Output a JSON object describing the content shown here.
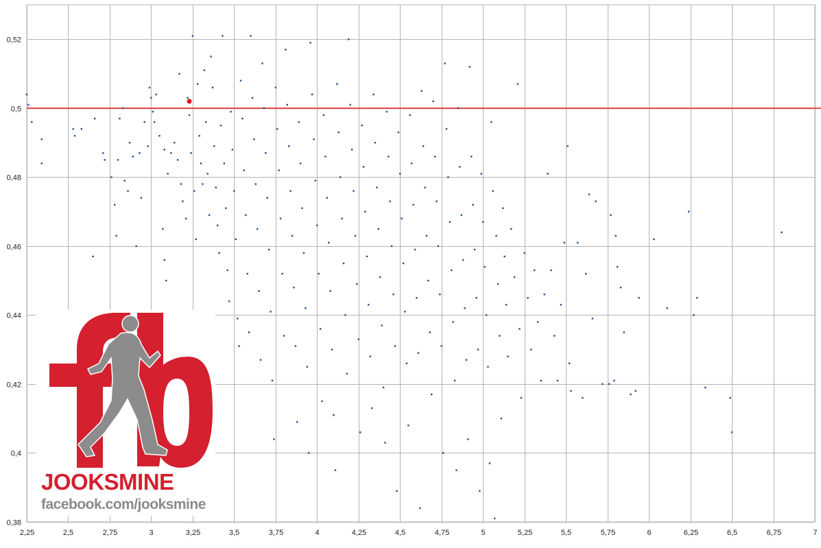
{
  "chart_data": {
    "type": "scatter",
    "title": "",
    "xlabel": "",
    "ylabel": "",
    "xlim": [
      2.25,
      7
    ],
    "ylim": [
      0.38,
      0.53
    ],
    "x_ticks": [
      "2,25",
      "2,5",
      "2,75",
      "3",
      "3,25",
      "3,5",
      "3,75",
      "4",
      "4,25",
      "4,5",
      "4,75",
      "5",
      "5,25",
      "5,5",
      "5,75",
      "6",
      "6,25",
      "6,5",
      "6,75",
      "7"
    ],
    "y_ticks": [
      "0,38",
      "0,4",
      "0,42",
      "0,44",
      "0,46",
      "0,48",
      "0,5",
      "0,52"
    ],
    "grid": true,
    "series": [
      {
        "color": "#1f4e8c",
        "points": [
          [
            2.25,
            0.504
          ],
          [
            2.26,
            0.501
          ],
          [
            2.28,
            0.496
          ],
          [
            2.34,
            0.491
          ],
          [
            2.34,
            0.484
          ],
          [
            2.53,
            0.494
          ],
          [
            2.54,
            0.492
          ],
          [
            2.58,
            0.494
          ],
          [
            2.65,
            0.457
          ],
          [
            2.66,
            0.497
          ],
          [
            2.71,
            0.487
          ],
          [
            2.72,
            0.485
          ],
          [
            2.76,
            0.48
          ],
          [
            2.78,
            0.472
          ],
          [
            2.79,
            0.463
          ],
          [
            2.8,
            0.485
          ],
          [
            2.81,
            0.497
          ],
          [
            2.83,
            0.5
          ],
          [
            2.84,
            0.479
          ],
          [
            2.86,
            0.476
          ],
          [
            2.87,
            0.49
          ],
          [
            2.89,
            0.486
          ],
          [
            2.91,
            0.46
          ],
          [
            2.93,
            0.487
          ],
          [
            2.94,
            0.474
          ],
          [
            2.96,
            0.496
          ],
          [
            2.98,
            0.489
          ],
          [
            2.99,
            0.506
          ],
          [
            3.0,
            0.503
          ],
          [
            3.01,
            0.499
          ],
          [
            3.02,
            0.496
          ],
          [
            3.03,
            0.504
          ],
          [
            3.05,
            0.492
          ],
          [
            3.07,
            0.465
          ],
          [
            3.08,
            0.488
          ],
          [
            3.08,
            0.456
          ],
          [
            3.09,
            0.45
          ],
          [
            3.1,
            0.481
          ],
          [
            3.12,
            0.487
          ],
          [
            3.14,
            0.49
          ],
          [
            3.16,
            0.485
          ],
          [
            3.17,
            0.51
          ],
          [
            3.18,
            0.478
          ],
          [
            3.19,
            0.473
          ],
          [
            3.21,
            0.468
          ],
          [
            3.22,
            0.503
          ],
          [
            3.23,
            0.498
          ],
          [
            3.24,
            0.487
          ],
          [
            3.25,
            0.521
          ],
          [
            3.26,
            0.476
          ],
          [
            3.27,
            0.462
          ],
          [
            3.28,
            0.507
          ],
          [
            3.29,
            0.492
          ],
          [
            3.3,
            0.484
          ],
          [
            3.31,
            0.478
          ],
          [
            3.32,
            0.511
          ],
          [
            3.33,
            0.496
          ],
          [
            3.34,
            0.481
          ],
          [
            3.35,
            0.469
          ],
          [
            3.36,
            0.515
          ],
          [
            3.37,
            0.506
          ],
          [
            3.38,
            0.489
          ],
          [
            3.39,
            0.477
          ],
          [
            3.4,
            0.466
          ],
          [
            3.41,
            0.458
          ],
          [
            3.42,
            0.495
          ],
          [
            3.43,
            0.521
          ],
          [
            3.44,
            0.484
          ],
          [
            3.45,
            0.471
          ],
          [
            3.46,
            0.453
          ],
          [
            3.47,
            0.444
          ],
          [
            3.48,
            0.499
          ],
          [
            3.49,
            0.488
          ],
          [
            3.5,
            0.476
          ],
          [
            3.51,
            0.462
          ],
          [
            3.52,
            0.439
          ],
          [
            3.53,
            0.431
          ],
          [
            3.54,
            0.508
          ],
          [
            3.55,
            0.497
          ],
          [
            3.56,
            0.482
          ],
          [
            3.57,
            0.469
          ],
          [
            3.58,
            0.452
          ],
          [
            3.59,
            0.435
          ],
          [
            3.6,
            0.521
          ],
          [
            3.61,
            0.503
          ],
          [
            3.62,
            0.491
          ],
          [
            3.63,
            0.478
          ],
          [
            3.64,
            0.465
          ],
          [
            3.65,
            0.447
          ],
          [
            3.66,
            0.427
          ],
          [
            3.67,
            0.513
          ],
          [
            3.68,
            0.5
          ],
          [
            3.69,
            0.487
          ],
          [
            3.7,
            0.474
          ],
          [
            3.71,
            0.459
          ],
          [
            3.72,
            0.441
          ],
          [
            3.73,
            0.421
          ],
          [
            3.74,
            0.404
          ],
          [
            3.75,
            0.506
          ],
          [
            3.76,
            0.494
          ],
          [
            3.77,
            0.482
          ],
          [
            3.78,
            0.468
          ],
          [
            3.79,
            0.452
          ],
          [
            3.8,
            0.434
          ],
          [
            3.81,
            0.517
          ],
          [
            3.82,
            0.501
          ],
          [
            3.83,
            0.489
          ],
          [
            3.84,
            0.476
          ],
          [
            3.85,
            0.463
          ],
          [
            3.86,
            0.448
          ],
          [
            3.87,
            0.431
          ],
          [
            3.88,
            0.409
          ],
          [
            3.89,
            0.496
          ],
          [
            3.9,
            0.484
          ],
          [
            3.91,
            0.471
          ],
          [
            3.92,
            0.458
          ],
          [
            3.93,
            0.442
          ],
          [
            3.94,
            0.425
          ],
          [
            3.95,
            0.4
          ],
          [
            3.96,
            0.519
          ],
          [
            3.97,
            0.504
          ],
          [
            3.98,
            0.491
          ],
          [
            3.99,
            0.479
          ],
          [
            4.0,
            0.466
          ],
          [
            4.01,
            0.452
          ],
          [
            4.02,
            0.436
          ],
          [
            4.03,
            0.415
          ],
          [
            4.04,
            0.498
          ],
          [
            4.05,
            0.486
          ],
          [
            4.06,
            0.474
          ],
          [
            4.07,
            0.461
          ],
          [
            4.08,
            0.447
          ],
          [
            4.09,
            0.43
          ],
          [
            4.1,
            0.411
          ],
          [
            4.11,
            0.395
          ],
          [
            4.12,
            0.507
          ],
          [
            4.13,
            0.493
          ],
          [
            4.14,
            0.48
          ],
          [
            4.15,
            0.468
          ],
          [
            4.16,
            0.455
          ],
          [
            4.17,
            0.44
          ],
          [
            4.18,
            0.423
          ],
          [
            4.19,
            0.52
          ],
          [
            4.2,
            0.501
          ],
          [
            4.21,
            0.488
          ],
          [
            4.22,
            0.476
          ],
          [
            4.23,
            0.463
          ],
          [
            4.24,
            0.449
          ],
          [
            4.25,
            0.433
          ],
          [
            4.26,
            0.406
          ],
          [
            4.27,
            0.495
          ],
          [
            4.28,
            0.483
          ],
          [
            4.29,
            0.47
          ],
          [
            4.3,
            0.457
          ],
          [
            4.31,
            0.443
          ],
          [
            4.32,
            0.428
          ],
          [
            4.33,
            0.413
          ],
          [
            4.34,
            0.504
          ],
          [
            4.35,
            0.49
          ],
          [
            4.36,
            0.477
          ],
          [
            4.37,
            0.465
          ],
          [
            4.38,
            0.451
          ],
          [
            4.39,
            0.437
          ],
          [
            4.4,
            0.419
          ],
          [
            4.41,
            0.403
          ],
          [
            4.42,
            0.499
          ],
          [
            4.43,
            0.486
          ],
          [
            4.44,
            0.473
          ],
          [
            4.45,
            0.46
          ],
          [
            4.46,
            0.446
          ],
          [
            4.47,
            0.431
          ],
          [
            4.48,
            0.389
          ],
          [
            4.49,
            0.493
          ],
          [
            4.5,
            0.481
          ],
          [
            4.51,
            0.468
          ],
          [
            4.52,
            0.455
          ],
          [
            4.53,
            0.441
          ],
          [
            4.54,
            0.426
          ],
          [
            4.55,
            0.408
          ],
          [
            4.56,
            0.498
          ],
          [
            4.57,
            0.484
          ],
          [
            4.58,
            0.472
          ],
          [
            4.59,
            0.459
          ],
          [
            4.6,
            0.445
          ],
          [
            4.61,
            0.429
          ],
          [
            4.62,
            0.384
          ],
          [
            4.63,
            0.505
          ],
          [
            4.64,
            0.489
          ],
          [
            4.65,
            0.477
          ],
          [
            4.66,
            0.463
          ],
          [
            4.67,
            0.45
          ],
          [
            4.68,
            0.435
          ],
          [
            4.69,
            0.417
          ],
          [
            4.7,
            0.502
          ],
          [
            4.71,
            0.486
          ],
          [
            4.72,
            0.473
          ],
          [
            4.73,
            0.46
          ],
          [
            4.74,
            0.446
          ],
          [
            4.75,
            0.431
          ],
          [
            4.76,
            0.4
          ],
          [
            4.77,
            0.513
          ],
          [
            4.78,
            0.494
          ],
          [
            4.79,
            0.48
          ],
          [
            4.8,
            0.467
          ],
          [
            4.81,
            0.453
          ],
          [
            4.82,
            0.438
          ],
          [
            4.83,
            0.421
          ],
          [
            4.84,
            0.395
          ],
          [
            4.85,
            0.5
          ],
          [
            4.86,
            0.483
          ],
          [
            4.87,
            0.469
          ],
          [
            4.88,
            0.456
          ],
          [
            4.89,
            0.442
          ],
          [
            4.9,
            0.427
          ],
          [
            4.91,
            0.404
          ],
          [
            4.92,
            0.512
          ],
          [
            4.93,
            0.486
          ],
          [
            4.94,
            0.472
          ],
          [
            4.95,
            0.459
          ],
          [
            4.96,
            0.445
          ],
          [
            4.97,
            0.43
          ],
          [
            4.98,
            0.389
          ],
          [
            4.99,
            0.481
          ],
          [
            5.0,
            0.467
          ],
          [
            5.01,
            0.454
          ],
          [
            5.02,
            0.44
          ],
          [
            5.03,
            0.425
          ],
          [
            5.04,
            0.397
          ],
          [
            5.05,
            0.496
          ],
          [
            5.06,
            0.476
          ],
          [
            5.07,
            0.381
          ],
          [
            5.08,
            0.463
          ],
          [
            5.09,
            0.449
          ],
          [
            5.1,
            0.434
          ],
          [
            5.11,
            0.41
          ],
          [
            5.12,
            0.471
          ],
          [
            5.13,
            0.457
          ],
          [
            5.14,
            0.443
          ],
          [
            5.15,
            0.428
          ],
          [
            5.17,
            0.465
          ],
          [
            5.19,
            0.451
          ],
          [
            5.21,
            0.507
          ],
          [
            5.22,
            0.436
          ],
          [
            5.23,
            0.416
          ],
          [
            5.25,
            0.458
          ],
          [
            5.27,
            0.445
          ],
          [
            5.29,
            0.43
          ],
          [
            5.31,
            0.453
          ],
          [
            5.33,
            0.438
          ],
          [
            5.35,
            0.421
          ],
          [
            5.37,
            0.446
          ],
          [
            5.39,
            0.481
          ],
          [
            5.41,
            0.453
          ],
          [
            5.43,
            0.434
          ],
          [
            5.45,
            0.421
          ],
          [
            5.47,
            0.443
          ],
          [
            5.49,
            0.461
          ],
          [
            5.51,
            0.489
          ],
          [
            5.52,
            0.426
          ],
          [
            5.53,
            0.418
          ],
          [
            5.57,
            0.461
          ],
          [
            5.6,
            0.416
          ],
          [
            5.62,
            0.452
          ],
          [
            5.64,
            0.475
          ],
          [
            5.66,
            0.439
          ],
          [
            5.68,
            0.473
          ],
          [
            5.72,
            0.42
          ],
          [
            5.76,
            0.42
          ],
          [
            5.77,
            0.469
          ],
          [
            5.79,
            0.421
          ],
          [
            5.8,
            0.463
          ],
          [
            5.81,
            0.454
          ],
          [
            5.83,
            0.448
          ],
          [
            5.85,
            0.435
          ],
          [
            5.89,
            0.417
          ],
          [
            5.92,
            0.418
          ],
          [
            5.94,
            0.445
          ],
          [
            6.03,
            0.462
          ],
          [
            6.11,
            0.442
          ],
          [
            6.24,
            0.47
          ],
          [
            6.27,
            0.44
          ],
          [
            6.29,
            0.445
          ],
          [
            6.34,
            0.419
          ],
          [
            6.49,
            0.416
          ],
          [
            6.5,
            0.406
          ],
          [
            6.8,
            0.464
          ]
        ]
      },
      {
        "color": "#e0151b",
        "points": [
          [
            3.23,
            0.502
          ]
        ]
      }
    ],
    "reference_line": {
      "y": 0.5,
      "color": "#ee4444"
    }
  },
  "logo": {
    "brand": "JOOKSMINE",
    "url": "facebook.com/jooksmine"
  }
}
